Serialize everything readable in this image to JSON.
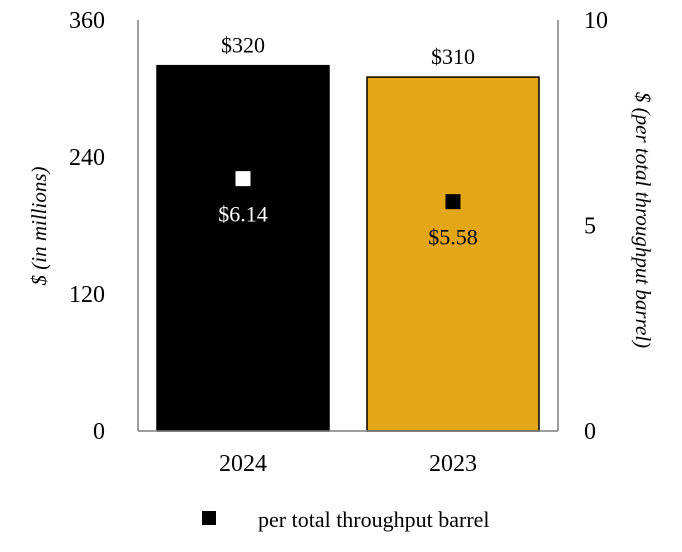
{
  "chart_data": {
    "type": "bar",
    "categories": [
      "2024",
      "2023"
    ],
    "series": [
      {
        "type": "bar",
        "axis": "left",
        "values": [
          320,
          310
        ],
        "labels": [
          "$320",
          "$310"
        ],
        "colors": [
          "#000000",
          "#E3A617"
        ]
      },
      {
        "name": "per total throughput barrel",
        "type": "scatter",
        "marker": "square",
        "axis": "right",
        "values": [
          6.14,
          5.58
        ],
        "labels": [
          "$6.14",
          "$5.58"
        ],
        "colors": [
          "#ffffff",
          "#000000"
        ]
      }
    ],
    "ylabel": "$ (in millions)",
    "ylabel_right": "$ (per total throughput barrel)",
    "ylim": [
      0,
      360
    ],
    "ylim_right": [
      0,
      10
    ],
    "yticks": [
      "0",
      "120",
      "240",
      "360"
    ],
    "yticks_right": [
      "0",
      "5",
      "10"
    ],
    "grid": false,
    "legend": {
      "position": "bottom",
      "entries": [
        "per total throughput barrel"
      ]
    }
  }
}
